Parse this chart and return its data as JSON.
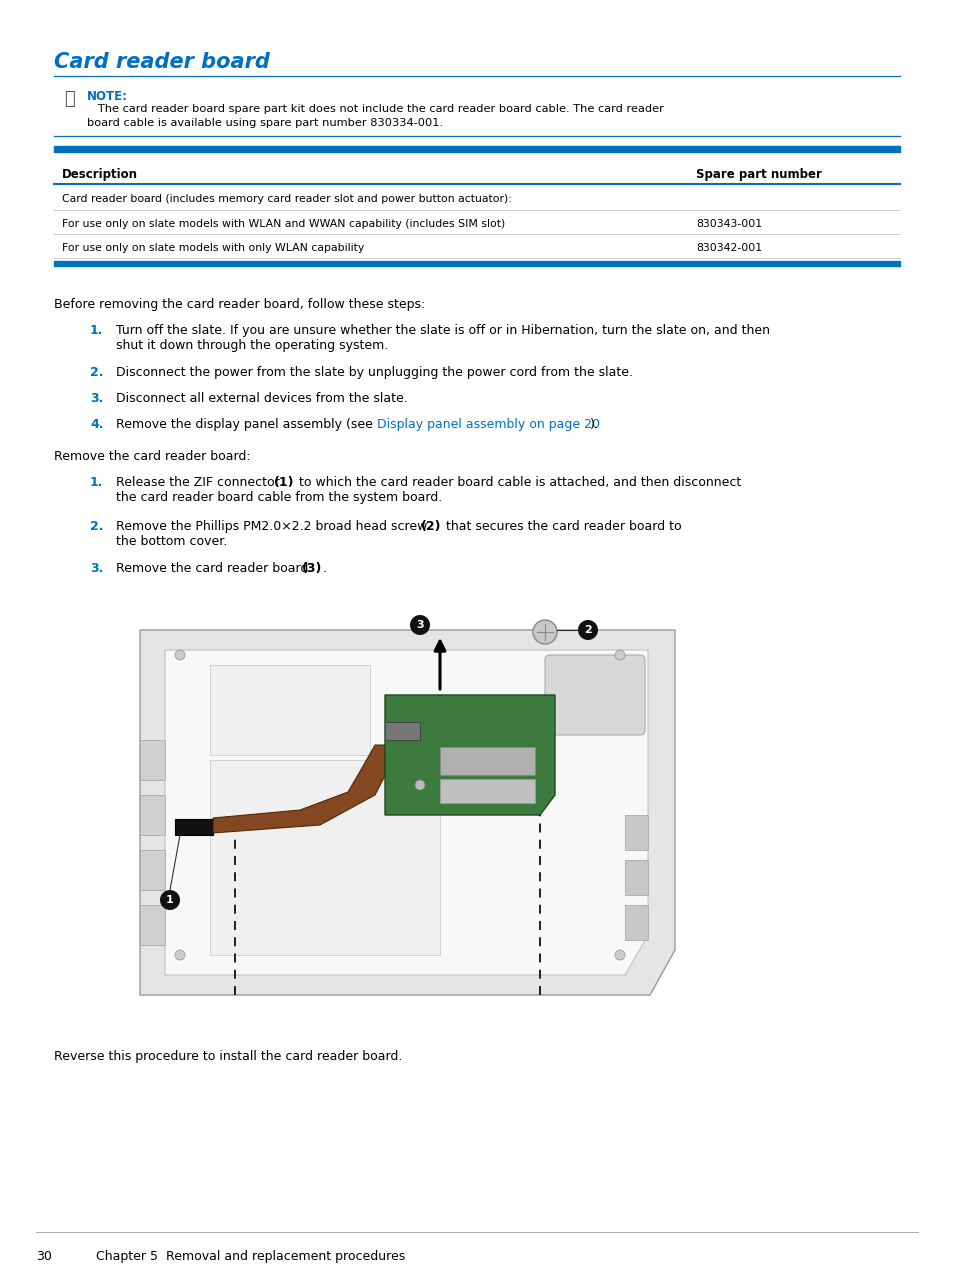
{
  "bg_color": "#ffffff",
  "title": "Card reader board",
  "title_color": "#0070c0",
  "title_fontsize": 15,
  "note_label": "NOTE:",
  "note_label_color": "#0070c0",
  "note_text_line1": "   The card reader board spare part kit does not include the card reader board cable. The card reader",
  "note_text_line2": "board cable is available using spare part number 830334-001.",
  "table_header_desc": "Description",
  "table_header_part": "Spare part number",
  "table_rows": [
    [
      "Card reader board (includes memory card reader slot and power button actuator):",
      ""
    ],
    [
      "For use only on slate models with WLAN and WWAN capability (includes SIM slot)",
      "830343-001"
    ],
    [
      "For use only on slate models with only WLAN capability",
      "830342-001"
    ]
  ],
  "table_line_color": "#0070c0",
  "intro_text": "Before removing the card reader board, follow these steps:",
  "step4_link_color": "#0070c0",
  "remove_intro": "Remove the card reader board:",
  "footer_text": "Reverse this procedure to install the card reader board.",
  "page_num": "30",
  "chapter_text": "    Chapter 5  Removal and replacement procedures"
}
